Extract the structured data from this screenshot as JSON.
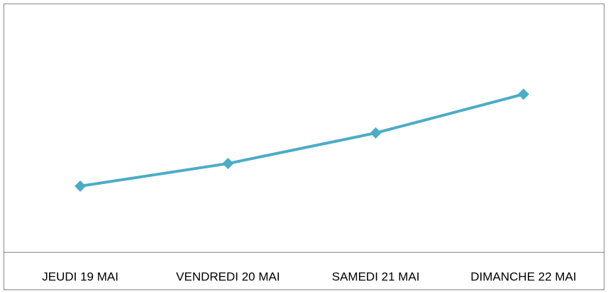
{
  "chart_data": {
    "type": "line",
    "categories": [
      "JEUDI 19 MAI",
      "VENDREDI 20 MAI",
      "SAMEDI 21 MAI",
      "DIMANCHE 22 MAI"
    ],
    "series": [
      {
        "color": "#4bacc6",
        "values": [
          26.5,
          35.6,
          47.9,
          63.5
        ]
      }
    ],
    "ylim": [
      0,
      100
    ]
  }
}
